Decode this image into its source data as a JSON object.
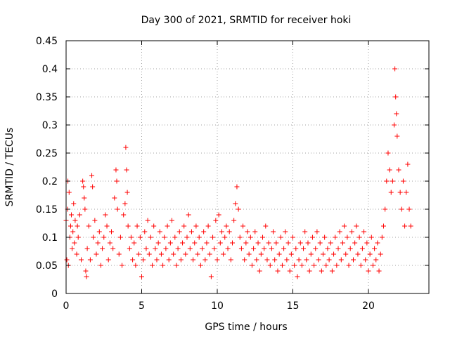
{
  "chart_data": {
    "type": "scatter",
    "title": "Day 300 of 2021, SRMTID for receiver hoki",
    "xlabel": "GPS time / hours",
    "ylabel": "SRMTID / TECUs",
    "xlim": [
      0,
      24
    ],
    "ylim": [
      0,
      0.45
    ],
    "xticks": [
      0,
      5,
      10,
      15,
      20
    ],
    "xtick_labels": [
      "0",
      "5",
      "10",
      "15",
      "20"
    ],
    "yticks": [
      0,
      0.05,
      0.1,
      0.15,
      0.2,
      0.25,
      0.3,
      0.35,
      0.4,
      0.45
    ],
    "ytick_labels": [
      "0",
      "0.05",
      "0.1",
      "0.15",
      "0.2",
      "0.25",
      "0.3",
      "0.35",
      "0.4",
      "0.45"
    ],
    "grid": true,
    "marker": "+",
    "marker_color": "#ff0000",
    "series": [
      {
        "name": "SRMTID",
        "points": [
          [
            0.0,
            0.13
          ],
          [
            0.05,
            0.06
          ],
          [
            0.1,
            0.15
          ],
          [
            0.12,
            0.2
          ],
          [
            0.15,
            0.05
          ],
          [
            0.2,
            0.18
          ],
          [
            0.25,
            0.1
          ],
          [
            0.3,
            0.12
          ],
          [
            0.35,
            0.14
          ],
          [
            0.4,
            0.08
          ],
          [
            0.45,
            0.11
          ],
          [
            0.5,
            0.16
          ],
          [
            0.55,
            0.09
          ],
          [
            0.6,
            0.13
          ],
          [
            0.7,
            0.07
          ],
          [
            0.75,
            0.12
          ],
          [
            0.8,
            0.1
          ],
          [
            0.9,
            0.14
          ],
          [
            1.0,
            0.06
          ],
          [
            1.1,
            0.2
          ],
          [
            1.15,
            0.19
          ],
          [
            1.2,
            0.17
          ],
          [
            1.25,
            0.15
          ],
          [
            1.3,
            0.04
          ],
          [
            1.35,
            0.03
          ],
          [
            1.4,
            0.08
          ],
          [
            1.5,
            0.12
          ],
          [
            1.6,
            0.06
          ],
          [
            1.7,
            0.21
          ],
          [
            1.75,
            0.19
          ],
          [
            1.8,
            0.1
          ],
          [
            1.9,
            0.13
          ],
          [
            2.0,
            0.07
          ],
          [
            2.1,
            0.09
          ],
          [
            2.2,
            0.11
          ],
          [
            2.3,
            0.05
          ],
          [
            2.4,
            0.08
          ],
          [
            2.5,
            0.1
          ],
          [
            2.6,
            0.14
          ],
          [
            2.7,
            0.12
          ],
          [
            2.8,
            0.06
          ],
          [
            2.9,
            0.09
          ],
          [
            3.0,
            0.11
          ],
          [
            3.1,
            0.08
          ],
          [
            3.2,
            0.17
          ],
          [
            3.3,
            0.22
          ],
          [
            3.35,
            0.2
          ],
          [
            3.4,
            0.15
          ],
          [
            3.5,
            0.07
          ],
          [
            3.6,
            0.1
          ],
          [
            3.7,
            0.05
          ],
          [
            3.8,
            0.14
          ],
          [
            3.9,
            0.16
          ],
          [
            3.95,
            0.26
          ],
          [
            4.0,
            0.22
          ],
          [
            4.05,
            0.18
          ],
          [
            4.1,
            0.12
          ],
          [
            4.2,
            0.08
          ],
          [
            4.3,
            0.1
          ],
          [
            4.4,
            0.06
          ],
          [
            4.5,
            0.09
          ],
          [
            4.6,
            0.05
          ],
          [
            4.7,
            0.12
          ],
          [
            4.8,
            0.07
          ],
          [
            4.9,
            0.1
          ],
          [
            5.0,
            0.03
          ],
          [
            5.1,
            0.06
          ],
          [
            5.2,
            0.11
          ],
          [
            5.3,
            0.08
          ],
          [
            5.4,
            0.13
          ],
          [
            5.5,
            0.07
          ],
          [
            5.6,
            0.1
          ],
          [
            5.7,
            0.05
          ],
          [
            5.8,
            0.12
          ],
          [
            5.9,
            0.08
          ],
          [
            6.0,
            0.06
          ],
          [
            6.1,
            0.09
          ],
          [
            6.2,
            0.11
          ],
          [
            6.3,
            0.07
          ],
          [
            6.4,
            0.05
          ],
          [
            6.5,
            0.1
          ],
          [
            6.6,
            0.08
          ],
          [
            6.7,
            0.12
          ],
          [
            6.8,
            0.06
          ],
          [
            6.9,
            0.09
          ],
          [
            7.0,
            0.13
          ],
          [
            7.1,
            0.07
          ],
          [
            7.2,
            0.1
          ],
          [
            7.3,
            0.05
          ],
          [
            7.4,
            0.08
          ],
          [
            7.5,
            0.11
          ],
          [
            7.6,
            0.06
          ],
          [
            7.7,
            0.09
          ],
          [
            7.8,
            0.12
          ],
          [
            7.9,
            0.07
          ],
          [
            8.0,
            0.1
          ],
          [
            8.1,
            0.14
          ],
          [
            8.2,
            0.08
          ],
          [
            8.3,
            0.11
          ],
          [
            8.4,
            0.06
          ],
          [
            8.5,
            0.09
          ],
          [
            8.6,
            0.12
          ],
          [
            8.7,
            0.07
          ],
          [
            8.8,
            0.1
          ],
          [
            8.9,
            0.05
          ],
          [
            9.0,
            0.08
          ],
          [
            9.1,
            0.11
          ],
          [
            9.2,
            0.06
          ],
          [
            9.3,
            0.09
          ],
          [
            9.4,
            0.12
          ],
          [
            9.5,
            0.07
          ],
          [
            9.6,
            0.03
          ],
          [
            9.7,
            0.1
          ],
          [
            9.8,
            0.08
          ],
          [
            9.9,
            0.13
          ],
          [
            10.0,
            0.06
          ],
          [
            10.1,
            0.14
          ],
          [
            10.2,
            0.09
          ],
          [
            10.3,
            0.11
          ],
          [
            10.4,
            0.07
          ],
          [
            10.5,
            0.1
          ],
          [
            10.6,
            0.12
          ],
          [
            10.7,
            0.08
          ],
          [
            10.8,
            0.11
          ],
          [
            10.9,
            0.06
          ],
          [
            11.0,
            0.09
          ],
          [
            11.1,
            0.13
          ],
          [
            11.2,
            0.16
          ],
          [
            11.3,
            0.19
          ],
          [
            11.4,
            0.15
          ],
          [
            11.5,
            0.1
          ],
          [
            11.6,
            0.08
          ],
          [
            11.7,
            0.12
          ],
          [
            11.8,
            0.06
          ],
          [
            11.9,
            0.09
          ],
          [
            12.0,
            0.11
          ],
          [
            12.1,
            0.07
          ],
          [
            12.2,
            0.1
          ],
          [
            12.3,
            0.05
          ],
          [
            12.4,
            0.08
          ],
          [
            12.5,
            0.11
          ],
          [
            12.6,
            0.06
          ],
          [
            12.7,
            0.09
          ],
          [
            12.8,
            0.04
          ],
          [
            12.9,
            0.07
          ],
          [
            13.0,
            0.1
          ],
          [
            13.1,
            0.08
          ],
          [
            13.2,
            0.12
          ],
          [
            13.3,
            0.06
          ],
          [
            13.4,
            0.09
          ],
          [
            13.5,
            0.05
          ],
          [
            13.6,
            0.08
          ],
          [
            13.7,
            0.11
          ],
          [
            13.8,
            0.06
          ],
          [
            13.9,
            0.09
          ],
          [
            14.0,
            0.04
          ],
          [
            14.1,
            0.07
          ],
          [
            14.2,
            0.1
          ],
          [
            14.3,
            0.05
          ],
          [
            14.4,
            0.08
          ],
          [
            14.5,
            0.11
          ],
          [
            14.6,
            0.06
          ],
          [
            14.7,
            0.09
          ],
          [
            14.8,
            0.04
          ],
          [
            14.9,
            0.07
          ],
          [
            15.0,
            0.1
          ],
          [
            15.1,
            0.05
          ],
          [
            15.2,
            0.08
          ],
          [
            15.3,
            0.03
          ],
          [
            15.4,
            0.06
          ],
          [
            15.5,
            0.09
          ],
          [
            15.6,
            0.05
          ],
          [
            15.7,
            0.08
          ],
          [
            15.8,
            0.11
          ],
          [
            15.9,
            0.06
          ],
          [
            16.0,
            0.09
          ],
          [
            16.1,
            0.04
          ],
          [
            16.2,
            0.07
          ],
          [
            16.3,
            0.1
          ],
          [
            16.4,
            0.05
          ],
          [
            16.5,
            0.08
          ],
          [
            16.6,
            0.11
          ],
          [
            16.7,
            0.06
          ],
          [
            16.8,
            0.09
          ],
          [
            16.9,
            0.04
          ],
          [
            17.0,
            0.07
          ],
          [
            17.1,
            0.1
          ],
          [
            17.2,
            0.05
          ],
          [
            17.3,
            0.08
          ],
          [
            17.4,
            0.06
          ],
          [
            17.5,
            0.09
          ],
          [
            17.6,
            0.04
          ],
          [
            17.7,
            0.07
          ],
          [
            17.8,
            0.1
          ],
          [
            17.9,
            0.05
          ],
          [
            18.0,
            0.08
          ],
          [
            18.1,
            0.11
          ],
          [
            18.2,
            0.06
          ],
          [
            18.3,
            0.09
          ],
          [
            18.4,
            0.12
          ],
          [
            18.5,
            0.07
          ],
          [
            18.6,
            0.1
          ],
          [
            18.7,
            0.05
          ],
          [
            18.8,
            0.08
          ],
          [
            18.9,
            0.11
          ],
          [
            19.0,
            0.06
          ],
          [
            19.1,
            0.09
          ],
          [
            19.2,
            0.12
          ],
          [
            19.3,
            0.07
          ],
          [
            19.4,
            0.1
          ],
          [
            19.5,
            0.05
          ],
          [
            19.6,
            0.08
          ],
          [
            19.7,
            0.11
          ],
          [
            19.8,
            0.06
          ],
          [
            19.9,
            0.09
          ],
          [
            20.0,
            0.04
          ],
          [
            20.1,
            0.07
          ],
          [
            20.2,
            0.1
          ],
          [
            20.3,
            0.05
          ],
          [
            20.4,
            0.08
          ],
          [
            20.5,
            0.06
          ],
          [
            20.6,
            0.09
          ],
          [
            20.7,
            0.04
          ],
          [
            20.8,
            0.07
          ],
          [
            20.9,
            0.1
          ],
          [
            21.0,
            0.12
          ],
          [
            21.1,
            0.15
          ],
          [
            21.2,
            0.2
          ],
          [
            21.3,
            0.25
          ],
          [
            21.4,
            0.22
          ],
          [
            21.5,
            0.18
          ],
          [
            21.6,
            0.2
          ],
          [
            21.7,
            0.3
          ],
          [
            21.75,
            0.4
          ],
          [
            21.8,
            0.35
          ],
          [
            21.85,
            0.32
          ],
          [
            21.9,
            0.28
          ],
          [
            22.0,
            0.22
          ],
          [
            22.1,
            0.18
          ],
          [
            22.2,
            0.15
          ],
          [
            22.3,
            0.2
          ],
          [
            22.4,
            0.12
          ],
          [
            22.5,
            0.18
          ],
          [
            22.6,
            0.23
          ],
          [
            22.7,
            0.15
          ],
          [
            22.8,
            0.12
          ]
        ]
      }
    ]
  }
}
